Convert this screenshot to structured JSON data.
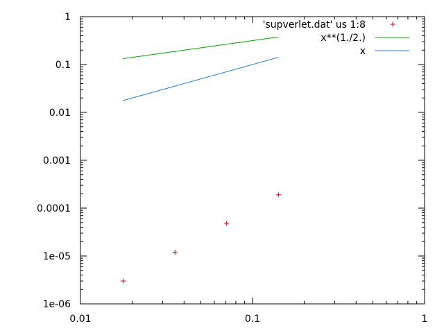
{
  "chart_data": {
    "type": "line",
    "title": "",
    "xlabel": "",
    "ylabel": "",
    "xscale": "log",
    "yscale": "log",
    "xlim": [
      0.01,
      1
    ],
    "ylim": [
      1e-06,
      1
    ],
    "grid": false,
    "legend_position": "top-right",
    "x_tick_labels": [
      "0.01",
      "0.1",
      "1"
    ],
    "y_tick_labels": [
      "1e-06",
      "1e-05",
      "0.0001",
      "0.001",
      "0.01",
      "0.1",
      "1"
    ],
    "series": [
      {
        "name": "'supverlet.dat' us 1:8",
        "style": "points",
        "marker": "plus",
        "color": "#cc0000",
        "x": [
          0.0177,
          0.0354,
          0.0707,
          0.1414
        ],
        "y": [
          3e-06,
          1.2e-05,
          4.8e-05,
          0.00019
        ]
      },
      {
        "name": "x**(1./2.)",
        "style": "line",
        "color": "#00a000",
        "x": [
          0.0177,
          0.1414
        ],
        "y": [
          0.133,
          0.376
        ]
      },
      {
        "name": "x",
        "style": "line",
        "color": "#1f78d1",
        "x": [
          0.0177,
          0.1414
        ],
        "y": [
          0.0177,
          0.1414
        ]
      }
    ]
  }
}
